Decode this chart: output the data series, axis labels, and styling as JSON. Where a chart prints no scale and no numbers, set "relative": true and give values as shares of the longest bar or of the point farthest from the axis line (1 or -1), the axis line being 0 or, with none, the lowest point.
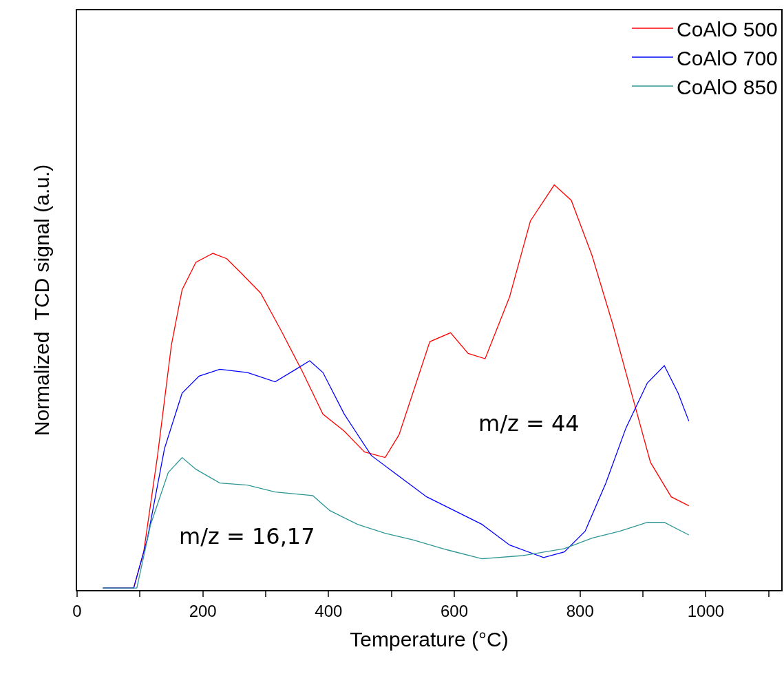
{
  "chart_data": {
    "type": "line",
    "relative": true,
    "xlabel": "Temperature (°C)",
    "ylabel": "Normalized  TCD signal (a.u.)",
    "xlim": [
      0,
      1120
    ],
    "xticks": [
      0,
      {
        "value": 100,
        "label": null
      },
      200,
      {
        "value": 300,
        "label": null
      },
      400,
      {
        "value": 500,
        "label": null
      },
      600,
      {
        "value": 700,
        "label": null
      },
      800,
      {
        "value": 900,
        "label": null
      },
      1000,
      {
        "value": 1100,
        "label": null
      }
    ],
    "tick_labels": "x",
    "legend": "top right",
    "marker": "none",
    "line_style": "solid",
    "annotations": [
      "m/z = 44",
      "m/z = 16,17"
    ],
    "series": [
      {
        "name": "CoAlO 500",
        "color": "#ff0000",
        "x": [
          41,
          90,
          106,
          128,
          150,
          167,
          189,
          216,
          238,
          260,
          292,
          325,
          359,
          391,
          425,
          457,
          490,
          512,
          534,
          561,
          594,
          622,
          649,
          688,
          721,
          759,
          786,
          819,
          852,
          885,
          912,
          945,
          973
        ],
        "values": [
          0.005,
          0.005,
          0.094,
          0.332,
          0.605,
          0.741,
          0.809,
          0.831,
          0.818,
          0.784,
          0.733,
          0.639,
          0.537,
          0.434,
          0.392,
          0.341,
          0.327,
          0.383,
          0.486,
          0.613,
          0.635,
          0.584,
          0.571,
          0.724,
          0.911,
          1.0,
          0.962,
          0.826,
          0.656,
          0.468,
          0.315,
          0.23,
          0.208
        ]
      },
      {
        "name": "CoAlO 700",
        "color": "#0000ff",
        "x": [
          41,
          90,
          112,
          139,
          167,
          194,
          227,
          271,
          315,
          348,
          370,
          391,
          425,
          468,
          512,
          556,
          600,
          644,
          688,
          742,
          775,
          808,
          841,
          873,
          907,
          934,
          956,
          973
        ],
        "values": [
          0.005,
          0.005,
          0.128,
          0.349,
          0.486,
          0.528,
          0.545,
          0.537,
          0.514,
          0.545,
          0.566,
          0.537,
          0.434,
          0.332,
          0.281,
          0.23,
          0.196,
          0.162,
          0.111,
          0.08,
          0.094,
          0.145,
          0.264,
          0.4,
          0.511,
          0.554,
          0.486,
          0.417
        ]
      },
      {
        "name": "CoAlO 850",
        "color": "#2e9696",
        "x": [
          41,
          95,
          117,
          145,
          167,
          189,
          227,
          271,
          315,
          375,
          402,
          446,
          490,
          534,
          589,
          644,
          709,
          775,
          819,
          863,
          907,
          934,
          973
        ],
        "values": [
          0.005,
          0.005,
          0.162,
          0.29,
          0.327,
          0.298,
          0.264,
          0.259,
          0.242,
          0.233,
          0.196,
          0.162,
          0.14,
          0.124,
          0.099,
          0.077,
          0.085,
          0.102,
          0.128,
          0.145,
          0.167,
          0.167,
          0.136
        ]
      }
    ]
  }
}
